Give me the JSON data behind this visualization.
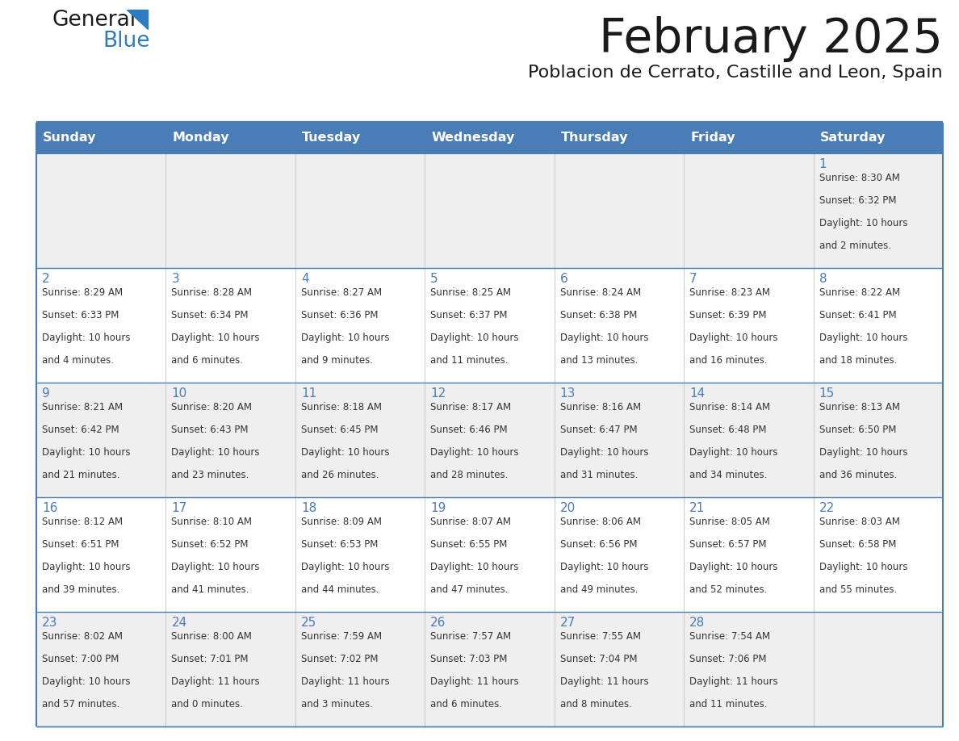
{
  "title": "February 2025",
  "subtitle": "Poblacion de Cerrato, Castille and Leon, Spain",
  "header_color": "#4a7cb5",
  "header_text_color": "#ffffff",
  "cell_bg_row0": "#efefef",
  "cell_bg_row1": "#ffffff",
  "cell_bg_row2": "#efefef",
  "cell_bg_row3": "#ffffff",
  "cell_bg_row4": "#efefef",
  "border_color": "#4a7cb5",
  "separator_color": "#cccccc",
  "title_color": "#1a1a1a",
  "subtitle_color": "#1a1a1a",
  "logo_general_color": "#1a1a1a",
  "logo_blue_color": "#2e7bbf",
  "day_headers": [
    "Sunday",
    "Monday",
    "Tuesday",
    "Wednesday",
    "Thursday",
    "Friday",
    "Saturday"
  ],
  "text_color": "#333333",
  "day_num_color": "#4a7cb5",
  "days": [
    {
      "day": 1,
      "col": 6,
      "row": 0,
      "sunrise": "8:30 AM",
      "sunset": "6:32 PM",
      "daylight_h": "10 hours",
      "daylight_m": "and 2 minutes."
    },
    {
      "day": 2,
      "col": 0,
      "row": 1,
      "sunrise": "8:29 AM",
      "sunset": "6:33 PM",
      "daylight_h": "10 hours",
      "daylight_m": "and 4 minutes."
    },
    {
      "day": 3,
      "col": 1,
      "row": 1,
      "sunrise": "8:28 AM",
      "sunset": "6:34 PM",
      "daylight_h": "10 hours",
      "daylight_m": "and 6 minutes."
    },
    {
      "day": 4,
      "col": 2,
      "row": 1,
      "sunrise": "8:27 AM",
      "sunset": "6:36 PM",
      "daylight_h": "10 hours",
      "daylight_m": "and 9 minutes."
    },
    {
      "day": 5,
      "col": 3,
      "row": 1,
      "sunrise": "8:25 AM",
      "sunset": "6:37 PM",
      "daylight_h": "10 hours",
      "daylight_m": "and 11 minutes."
    },
    {
      "day": 6,
      "col": 4,
      "row": 1,
      "sunrise": "8:24 AM",
      "sunset": "6:38 PM",
      "daylight_h": "10 hours",
      "daylight_m": "and 13 minutes."
    },
    {
      "day": 7,
      "col": 5,
      "row": 1,
      "sunrise": "8:23 AM",
      "sunset": "6:39 PM",
      "daylight_h": "10 hours",
      "daylight_m": "and 16 minutes."
    },
    {
      "day": 8,
      "col": 6,
      "row": 1,
      "sunrise": "8:22 AM",
      "sunset": "6:41 PM",
      "daylight_h": "10 hours",
      "daylight_m": "and 18 minutes."
    },
    {
      "day": 9,
      "col": 0,
      "row": 2,
      "sunrise": "8:21 AM",
      "sunset": "6:42 PM",
      "daylight_h": "10 hours",
      "daylight_m": "and 21 minutes."
    },
    {
      "day": 10,
      "col": 1,
      "row": 2,
      "sunrise": "8:20 AM",
      "sunset": "6:43 PM",
      "daylight_h": "10 hours",
      "daylight_m": "and 23 minutes."
    },
    {
      "day": 11,
      "col": 2,
      "row": 2,
      "sunrise": "8:18 AM",
      "sunset": "6:45 PM",
      "daylight_h": "10 hours",
      "daylight_m": "and 26 minutes."
    },
    {
      "day": 12,
      "col": 3,
      "row": 2,
      "sunrise": "8:17 AM",
      "sunset": "6:46 PM",
      "daylight_h": "10 hours",
      "daylight_m": "and 28 minutes."
    },
    {
      "day": 13,
      "col": 4,
      "row": 2,
      "sunrise": "8:16 AM",
      "sunset": "6:47 PM",
      "daylight_h": "10 hours",
      "daylight_m": "and 31 minutes."
    },
    {
      "day": 14,
      "col": 5,
      "row": 2,
      "sunrise": "8:14 AM",
      "sunset": "6:48 PM",
      "daylight_h": "10 hours",
      "daylight_m": "and 34 minutes."
    },
    {
      "day": 15,
      "col": 6,
      "row": 2,
      "sunrise": "8:13 AM",
      "sunset": "6:50 PM",
      "daylight_h": "10 hours",
      "daylight_m": "and 36 minutes."
    },
    {
      "day": 16,
      "col": 0,
      "row": 3,
      "sunrise": "8:12 AM",
      "sunset": "6:51 PM",
      "daylight_h": "10 hours",
      "daylight_m": "and 39 minutes."
    },
    {
      "day": 17,
      "col": 1,
      "row": 3,
      "sunrise": "8:10 AM",
      "sunset": "6:52 PM",
      "daylight_h": "10 hours",
      "daylight_m": "and 41 minutes."
    },
    {
      "day": 18,
      "col": 2,
      "row": 3,
      "sunrise": "8:09 AM",
      "sunset": "6:53 PM",
      "daylight_h": "10 hours",
      "daylight_m": "and 44 minutes."
    },
    {
      "day": 19,
      "col": 3,
      "row": 3,
      "sunrise": "8:07 AM",
      "sunset": "6:55 PM",
      "daylight_h": "10 hours",
      "daylight_m": "and 47 minutes."
    },
    {
      "day": 20,
      "col": 4,
      "row": 3,
      "sunrise": "8:06 AM",
      "sunset": "6:56 PM",
      "daylight_h": "10 hours",
      "daylight_m": "and 49 minutes."
    },
    {
      "day": 21,
      "col": 5,
      "row": 3,
      "sunrise": "8:05 AM",
      "sunset": "6:57 PM",
      "daylight_h": "10 hours",
      "daylight_m": "and 52 minutes."
    },
    {
      "day": 22,
      "col": 6,
      "row": 3,
      "sunrise": "8:03 AM",
      "sunset": "6:58 PM",
      "daylight_h": "10 hours",
      "daylight_m": "and 55 minutes."
    },
    {
      "day": 23,
      "col": 0,
      "row": 4,
      "sunrise": "8:02 AM",
      "sunset": "7:00 PM",
      "daylight_h": "10 hours",
      "daylight_m": "and 57 minutes."
    },
    {
      "day": 24,
      "col": 1,
      "row": 4,
      "sunrise": "8:00 AM",
      "sunset": "7:01 PM",
      "daylight_h": "11 hours",
      "daylight_m": "and 0 minutes."
    },
    {
      "day": 25,
      "col": 2,
      "row": 4,
      "sunrise": "7:59 AM",
      "sunset": "7:02 PM",
      "daylight_h": "11 hours",
      "daylight_m": "and 3 minutes."
    },
    {
      "day": 26,
      "col": 3,
      "row": 4,
      "sunrise": "7:57 AM",
      "sunset": "7:03 PM",
      "daylight_h": "11 hours",
      "daylight_m": "and 6 minutes."
    },
    {
      "day": 27,
      "col": 4,
      "row": 4,
      "sunrise": "7:55 AM",
      "sunset": "7:04 PM",
      "daylight_h": "11 hours",
      "daylight_m": "and 8 minutes."
    },
    {
      "day": 28,
      "col": 5,
      "row": 4,
      "sunrise": "7:54 AM",
      "sunset": "7:06 PM",
      "daylight_h": "11 hours",
      "daylight_m": "and 11 minutes."
    }
  ]
}
